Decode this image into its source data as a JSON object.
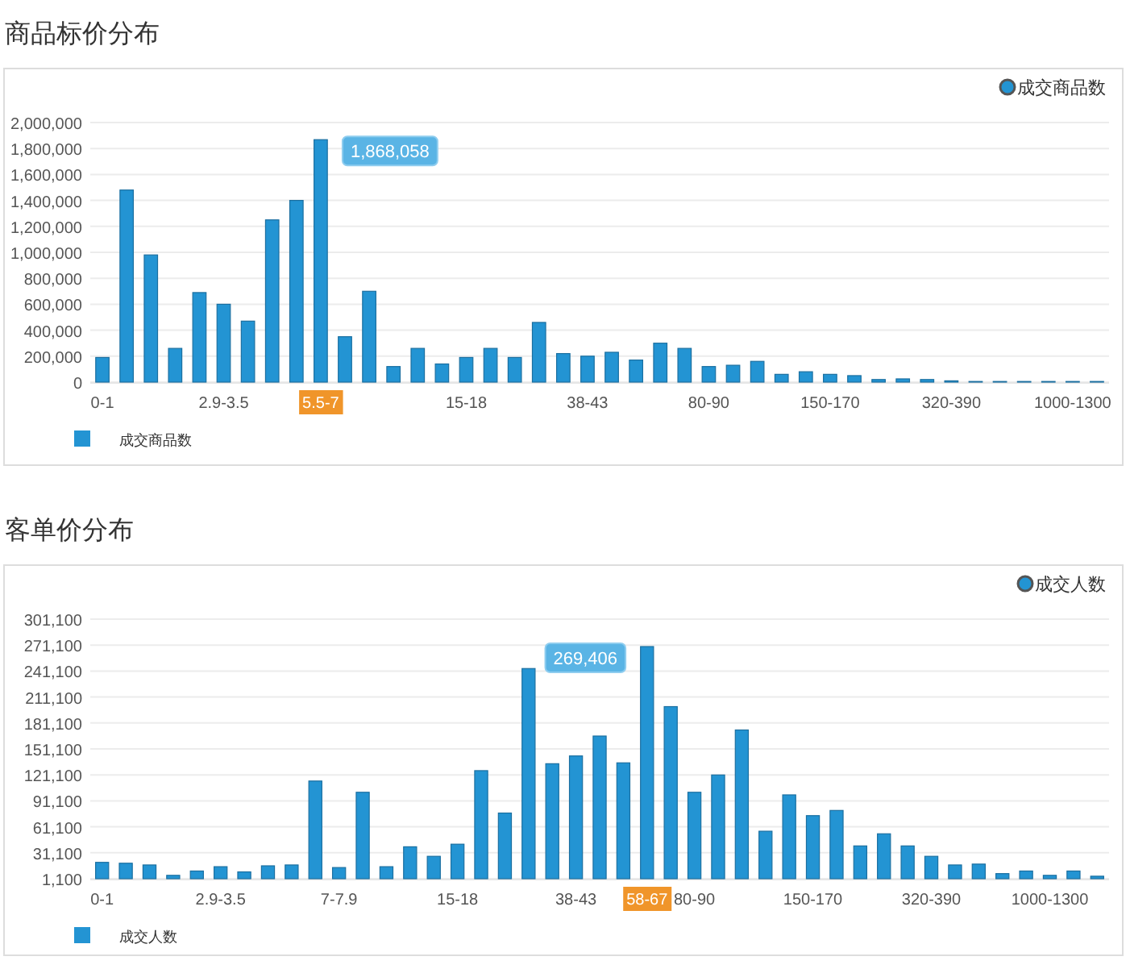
{
  "chart_data": [
    {
      "type": "bar",
      "title": "商品标价分布",
      "categories": [
        "0-1",
        null,
        null,
        null,
        null,
        "2.9-3.5",
        null,
        null,
        null,
        "5.5-7",
        null,
        null,
        null,
        null,
        null,
        "15-18",
        null,
        null,
        null,
        null,
        "38-43",
        null,
        null,
        null,
        null,
        "80-90",
        null,
        null,
        null,
        null,
        "150-170",
        null,
        null,
        null,
        null,
        "320-390",
        null,
        null,
        null,
        null,
        "1000-1300",
        null
      ],
      "series": [
        {
          "name": "成交商品数",
          "color": "#2394d3",
          "values": [
            190000,
            1480000,
            980000,
            260000,
            690000,
            600000,
            470000,
            1250000,
            1400000,
            1868058,
            350000,
            700000,
            120000,
            260000,
            140000,
            190000,
            260000,
            190000,
            460000,
            220000,
            200000,
            230000,
            170000,
            300000,
            260000,
            120000,
            130000,
            160000,
            60000,
            80000,
            60000,
            50000,
            20000,
            25000,
            20000,
            10000,
            5000,
            5000,
            5000,
            5000,
            5000,
            5000
          ]
        }
      ],
      "ylim": [
        0,
        2000000
      ],
      "yticks": [
        {
          "value": 0,
          "label": "0"
        },
        {
          "value": 200000,
          "label": "200,000"
        },
        {
          "value": 400000,
          "label": "400,000"
        },
        {
          "value": 600000,
          "label": "600,000"
        },
        {
          "value": 800000,
          "label": "800,000"
        },
        {
          "value": 1000000,
          "label": "1,000,000"
        },
        {
          "value": 1200000,
          "label": "1,200,000"
        },
        {
          "value": 1400000,
          "label": "1,400,000"
        },
        {
          "value": 1600000,
          "label": "1,600,000"
        },
        {
          "value": 1800000,
          "label": "1,800,000"
        },
        {
          "value": 2000000,
          "label": "2,000,000"
        }
      ],
      "grid": "y",
      "legend": "top right",
      "annotations": [
        {
          "text": "1,868,058",
          "x": "5.5-7",
          "y": 1868058
        }
      ]
    },
    {
      "type": "bar",
      "title": "客单价分布",
      "categories": [
        "0-1",
        null,
        null,
        null,
        null,
        "2.9-3.5",
        null,
        null,
        null,
        null,
        "7-7.9",
        null,
        null,
        null,
        null,
        "15-18",
        null,
        null,
        null,
        null,
        "38-43",
        null,
        null,
        "58-67",
        null,
        "80-90",
        null,
        null,
        null,
        null,
        "150-170",
        null,
        null,
        null,
        null,
        "320-390",
        null,
        null,
        null,
        null,
        "1000-1300",
        null,
        null
      ],
      "series": [
        {
          "name": "成交人数",
          "color": "#2394d3",
          "values": [
            20000,
            19000,
            17000,
            5000,
            10000,
            15000,
            9000,
            16000,
            17000,
            114000,
            14000,
            101000,
            15000,
            38000,
            27000,
            41000,
            126000,
            77000,
            244000,
            134000,
            143000,
            166000,
            135000,
            269406,
            200000,
            101000,
            121000,
            173000,
            56000,
            98000,
            74000,
            80000,
            39000,
            53000,
            39000,
            27000,
            17000,
            18000,
            7000,
            10000,
            5000,
            10000,
            4000
          ]
        }
      ],
      "ylim": [
        1100,
        301100
      ],
      "yticks": [
        {
          "value": 1100,
          "label": "1,100"
        },
        {
          "value": 31100,
          "label": "31,100"
        },
        {
          "value": 61100,
          "label": "61,100"
        },
        {
          "value": 91100,
          "label": "91,100"
        },
        {
          "value": 121100,
          "label": "121,100"
        },
        {
          "value": 151100,
          "label": "151,100"
        },
        {
          "value": 181100,
          "label": "181,100"
        },
        {
          "value": 211100,
          "label": "211,100"
        },
        {
          "value": 241100,
          "label": "241,100"
        },
        {
          "value": 271100,
          "label": "271,100"
        },
        {
          "value": 301100,
          "label": "301,100"
        }
      ],
      "grid": "y",
      "legend": "bottom left",
      "annotations": [
        {
          "text": "269,406",
          "x": "58-67",
          "y": 269406
        }
      ]
    }
  ]
}
